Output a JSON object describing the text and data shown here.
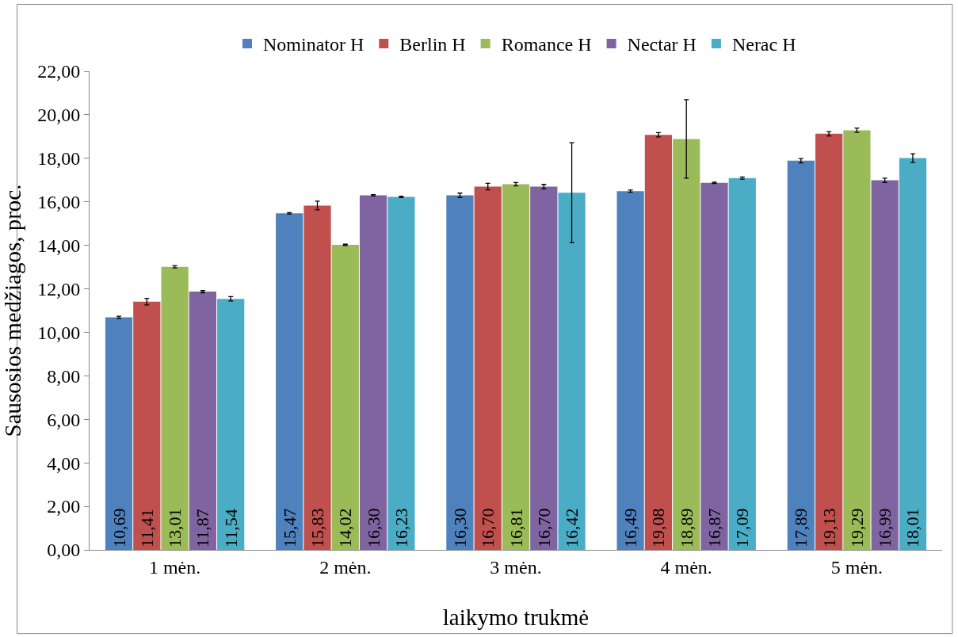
{
  "chart_data": {
    "type": "bar",
    "xlabel": "laikymo trukmė",
    "ylabel": "Sausosios medžiagos, proc.",
    "categories": [
      "1 mėn.",
      "2 mėn.",
      "3 mėn.",
      "4 mėn.",
      "5 mėn."
    ],
    "series": [
      {
        "name": "Nominator H",
        "color": "#4f81bd",
        "values": [
          10.69,
          15.47,
          16.3,
          16.49,
          17.89
        ],
        "errors": [
          0.05,
          0.03,
          0.1,
          0.05,
          0.1
        ],
        "value_labels": [
          "10,69",
          "15,47",
          "16,30",
          "16,49",
          "17,89"
        ]
      },
      {
        "name": "Berlin H",
        "color": "#c0504d",
        "values": [
          11.41,
          15.83,
          16.7,
          19.08,
          19.13
        ],
        "errors": [
          0.15,
          0.2,
          0.15,
          0.1,
          0.1
        ],
        "value_labels": [
          "11,41",
          "15,83",
          "16,70",
          "19,08",
          "19,13"
        ]
      },
      {
        "name": "Romance H",
        "color": "#9bbb59",
        "values": [
          13.01,
          14.02,
          16.81,
          18.89,
          19.29
        ],
        "errors": [
          0.05,
          0.03,
          0.08,
          1.8,
          0.1
        ],
        "value_labels": [
          "13,01",
          "14,02",
          "16,81",
          "18,89",
          "19,29"
        ]
      },
      {
        "name": "Nectar H",
        "color": "#8064a2",
        "values": [
          11.87,
          16.3,
          16.7,
          16.87,
          16.99
        ],
        "errors": [
          0.05,
          0.03,
          0.1,
          0.03,
          0.1
        ],
        "value_labels": [
          "11,87",
          "16,30",
          "16,70",
          "16,87",
          "16,99"
        ]
      },
      {
        "name": "Nerac H",
        "color": "#4bacc6",
        "values": [
          11.54,
          16.23,
          16.42,
          17.09,
          18.01
        ],
        "errors": [
          0.1,
          0.03,
          2.3,
          0.05,
          0.2
        ],
        "value_labels": [
          "11,54",
          "16,23",
          "16,42",
          "17,09",
          "18,01"
        ]
      }
    ],
    "ylim": [
      0,
      22
    ],
    "yticks": [
      {
        "value": 0,
        "label": "0,00"
      },
      {
        "value": 2,
        "label": "2,00"
      },
      {
        "value": 4,
        "label": "4,00"
      },
      {
        "value": 6,
        "label": "6,00"
      },
      {
        "value": 8,
        "label": "8,00"
      },
      {
        "value": 10,
        "label": "10,00"
      },
      {
        "value": 12,
        "label": "12,00"
      },
      {
        "value": 14,
        "label": "14,00"
      },
      {
        "value": 16,
        "label": "16,00"
      },
      {
        "value": 18,
        "label": "18,00"
      },
      {
        "value": 20,
        "label": "20,00"
      },
      {
        "value": 22,
        "label": "22,00"
      }
    ],
    "grid": false,
    "legend": "top"
  }
}
